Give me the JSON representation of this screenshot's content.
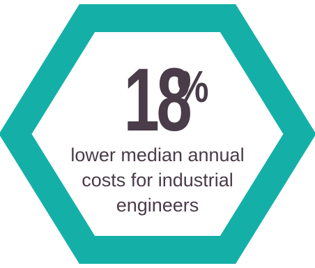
{
  "graphic": {
    "stat_value": "18",
    "stat_unit": "%",
    "caption_lines": [
      "lower median annual",
      "costs for industrial",
      "engineers"
    ],
    "colors": {
      "hexagon_border": "#14b0a8",
      "hexagon_fill": "#ffffff",
      "text": "#4a3c48"
    }
  }
}
